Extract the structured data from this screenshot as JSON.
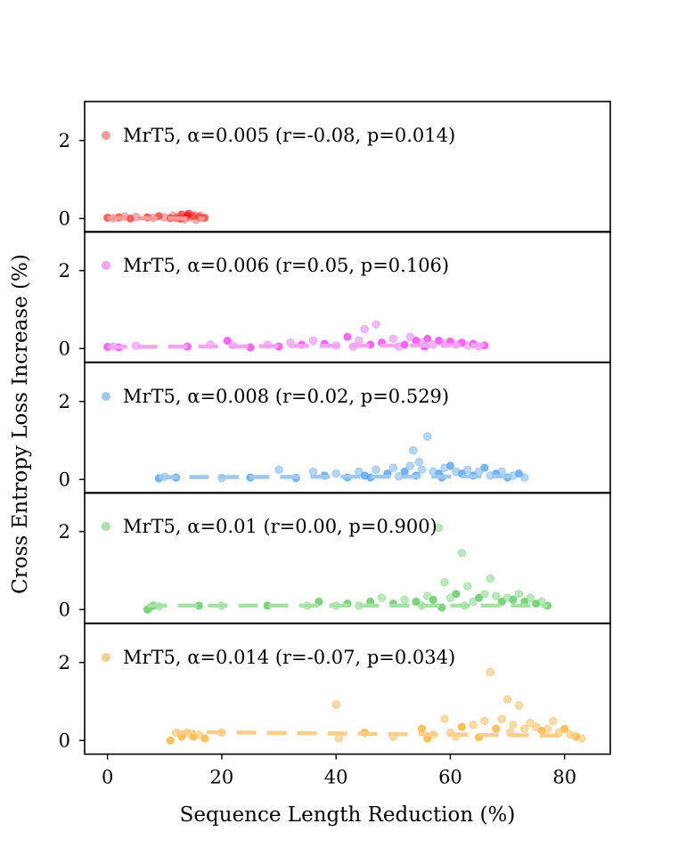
{
  "chart_data": {
    "type": "scatter",
    "xlabel": "Sequence Length Reduction (%)",
    "ylabel": "Cross Entropy Loss Increase (%)",
    "xlim": [
      -4,
      88
    ],
    "ylim": [
      -0.35,
      3.0
    ],
    "xticks": [
      "0",
      "20",
      "40",
      "60",
      "80"
    ],
    "yticks": [
      "0",
      "2"
    ],
    "legend_position": "top-left",
    "panels": [
      {
        "legend": "MrT5, α=0.005 (r=-0.08, p=0.014)",
        "color": "#ff0000",
        "light_color": "#f49a9a",
        "trend": {
          "x": [
            0,
            17
          ],
          "y": [
            0.01,
            0.0
          ]
        },
        "points": [
          [
            0,
            0.02
          ],
          [
            1,
            0.01
          ],
          [
            2,
            0.03
          ],
          [
            3,
            0.05
          ],
          [
            4,
            0.0
          ],
          [
            5,
            0.04
          ],
          [
            7,
            0.03
          ],
          [
            8,
            0.02
          ],
          [
            9,
            0.06
          ],
          [
            10,
            0.03
          ],
          [
            11,
            0.01
          ],
          [
            11.5,
            0.07
          ],
          [
            12,
            0.02
          ],
          [
            12.5,
            0.05
          ],
          [
            13,
            0.1
          ],
          [
            13.5,
            -0.02
          ],
          [
            14,
            0.08
          ],
          [
            14.5,
            0.03
          ],
          [
            15,
            0.06
          ],
          [
            15.5,
            -0.03
          ],
          [
            16,
            0.04
          ],
          [
            16.5,
            0.01
          ],
          [
            17,
            0.02
          ],
          [
            13.2,
            0.0
          ],
          [
            14.2,
            0.12
          ],
          [
            15.1,
            0.09
          ],
          [
            12.8,
            -0.01
          ],
          [
            16.2,
            0.07
          ],
          [
            13.8,
            0.04
          ]
        ]
      },
      {
        "legend": "MrT5, α=0.006 (r=0.05, p=0.106)",
        "color": "#ff00ff",
        "light_color": "#f3a4f3",
        "trend": {
          "x": [
            0,
            66
          ],
          "y": [
            0.04,
            0.09
          ]
        },
        "points": [
          [
            0,
            0.04
          ],
          [
            1,
            0.05
          ],
          [
            2,
            0.03
          ],
          [
            5,
            0.07
          ],
          [
            14,
            0.05
          ],
          [
            18,
            0.1
          ],
          [
            21,
            0.2
          ],
          [
            22,
            0.08
          ],
          [
            25,
            0.03
          ],
          [
            28,
            0.1
          ],
          [
            30,
            0.05
          ],
          [
            32,
            0.15
          ],
          [
            34,
            0.1
          ],
          [
            36,
            0.2
          ],
          [
            38,
            0.12
          ],
          [
            40,
            0.08
          ],
          [
            42,
            0.3
          ],
          [
            44,
            0.2
          ],
          [
            45,
            0.5
          ],
          [
            47,
            0.62
          ],
          [
            48,
            0.15
          ],
          [
            50,
            0.25
          ],
          [
            52,
            0.1
          ],
          [
            53,
            0.3
          ],
          [
            54,
            0.2
          ],
          [
            55,
            0.15
          ],
          [
            56,
            0.25
          ],
          [
            57,
            0.1
          ],
          [
            58,
            0.2
          ],
          [
            59,
            0.12
          ],
          [
            60,
            0.18
          ],
          [
            61,
            0.1
          ],
          [
            62,
            0.15
          ],
          [
            63,
            0.08
          ],
          [
            64,
            0.12
          ],
          [
            65,
            0.05
          ],
          [
            66,
            0.08
          ],
          [
            43,
            0.05
          ],
          [
            46,
            0.1
          ],
          [
            51,
            0.05
          ],
          [
            55.5,
            0.05
          ]
        ]
      },
      {
        "legend": "MrT5, α=0.008 (r=0.02, p=0.529)",
        "color": "#1f8ef1",
        "light_color": "#9ec8f0",
        "trend": {
          "x": [
            9,
            73
          ],
          "y": [
            0.06,
            0.08
          ]
        },
        "points": [
          [
            9,
            0.03
          ],
          [
            10,
            0.07
          ],
          [
            12,
            0.05
          ],
          [
            20,
            0.04
          ],
          [
            25,
            0.05
          ],
          [
            30,
            0.25
          ],
          [
            33,
            0.04
          ],
          [
            36,
            0.2
          ],
          [
            38,
            0.1
          ],
          [
            40,
            0.15
          ],
          [
            42,
            0.05
          ],
          [
            44,
            0.2
          ],
          [
            45,
            0.1
          ],
          [
            47,
            0.25
          ],
          [
            49,
            0.15
          ],
          [
            50,
            0.3
          ],
          [
            52,
            0.2
          ],
          [
            53,
            0.35
          ],
          [
            54,
            0.1
          ],
          [
            55,
            0.25
          ],
          [
            56,
            1.1
          ],
          [
            57,
            0.2
          ],
          [
            58,
            0.15
          ],
          [
            59,
            0.3
          ],
          [
            60,
            0.35
          ],
          [
            61,
            0.2
          ],
          [
            62,
            0.15
          ],
          [
            63,
            0.25
          ],
          [
            64,
            0.1
          ],
          [
            65,
            0.2
          ],
          [
            66,
            0.3
          ],
          [
            67,
            0.1
          ],
          [
            68,
            0.15
          ],
          [
            69,
            0.2
          ],
          [
            70,
            0.05
          ],
          [
            71,
            0.1
          ],
          [
            72,
            0.15
          ],
          [
            73,
            0.05
          ],
          [
            53.5,
            0.75
          ],
          [
            54.5,
            0.45
          ],
          [
            46,
            0.05
          ],
          [
            51,
            0.08
          ],
          [
            58.5,
            0.05
          ]
        ]
      },
      {
        "legend": "MrT5, α=0.01 (r=0.00, p=0.900)",
        "color": "#2ebd2e",
        "light_color": "#a6e2a6",
        "trend": {
          "x": [
            7,
            77
          ],
          "y": [
            0.1,
            0.1
          ]
        },
        "points": [
          [
            7,
            0.0
          ],
          [
            7.5,
            0.05
          ],
          [
            8,
            0.1
          ],
          [
            9,
            0.08
          ],
          [
            16,
            0.1
          ],
          [
            20,
            0.1
          ],
          [
            28,
            0.1
          ],
          [
            35,
            0.1
          ],
          [
            37,
            0.2
          ],
          [
            40,
            0.1
          ],
          [
            42,
            0.15
          ],
          [
            44,
            0.1
          ],
          [
            46,
            0.2
          ],
          [
            48,
            0.3
          ],
          [
            50,
            0.15
          ],
          [
            52,
            0.25
          ],
          [
            54,
            0.2
          ],
          [
            56,
            0.35
          ],
          [
            57,
            0.25
          ],
          [
            58,
            2.1
          ],
          [
            59,
            0.7
          ],
          [
            60,
            0.3
          ],
          [
            61,
            0.4
          ],
          [
            62,
            1.45
          ],
          [
            63,
            0.6
          ],
          [
            64,
            0.2
          ],
          [
            65,
            0.3
          ],
          [
            66,
            0.4
          ],
          [
            67,
            0.8
          ],
          [
            68,
            0.35
          ],
          [
            69,
            0.2
          ],
          [
            70,
            0.3
          ],
          [
            71,
            0.25
          ],
          [
            72,
            0.4
          ],
          [
            73,
            0.2
          ],
          [
            74,
            0.3
          ],
          [
            75,
            0.15
          ],
          [
            76,
            0.2
          ],
          [
            77,
            0.1
          ],
          [
            55,
            0.1
          ],
          [
            58.5,
            0.05
          ],
          [
            62.5,
            0.1
          ]
        ]
      },
      {
        "legend": "MrT5, α=0.014 (r=-0.07, p=0.034)",
        "color": "#ffa500",
        "light_color": "#f7cf8a",
        "trend": {
          "x": [
            12,
            82
          ],
          "y": [
            0.22,
            0.12
          ]
        },
        "points": [
          [
            11,
            0.0
          ],
          [
            12,
            0.2
          ],
          [
            13,
            0.1
          ],
          [
            14,
            0.2
          ],
          [
            15,
            0.1
          ],
          [
            16,
            0.15
          ],
          [
            17,
            0.05
          ],
          [
            20,
            0.2
          ],
          [
            40,
            0.92
          ],
          [
            40.5,
            0.05
          ],
          [
            45,
            0.2
          ],
          [
            50,
            0.1
          ],
          [
            55,
            0.3
          ],
          [
            57,
            0.15
          ],
          [
            59,
            0.55
          ],
          [
            60,
            0.2
          ],
          [
            62,
            0.35
          ],
          [
            64,
            0.4
          ],
          [
            66,
            0.5
          ],
          [
            67,
            1.75
          ],
          [
            68,
            0.3
          ],
          [
            69,
            0.55
          ],
          [
            70,
            1.05
          ],
          [
            71,
            0.4
          ],
          [
            72,
            0.9
          ],
          [
            73,
            0.3
          ],
          [
            74,
            0.45
          ],
          [
            75,
            0.35
          ],
          [
            76,
            0.25
          ],
          [
            77,
            0.3
          ],
          [
            78,
            0.5
          ],
          [
            79,
            0.2
          ],
          [
            80,
            0.3
          ],
          [
            81,
            0.15
          ],
          [
            82,
            0.1
          ],
          [
            83,
            0.05
          ],
          [
            56,
            0.05
          ],
          [
            61,
            0.1
          ],
          [
            65,
            0.08
          ],
          [
            70.5,
            0.2
          ]
        ]
      }
    ]
  }
}
